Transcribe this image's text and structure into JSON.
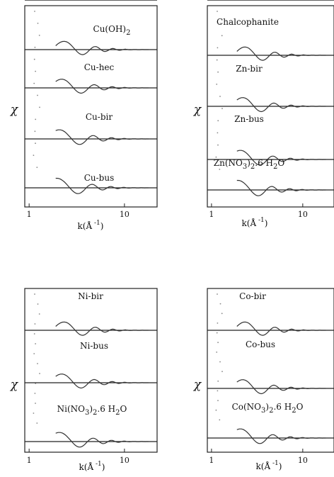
{
  "chart_data": [
    {
      "type": "line",
      "id": "top-left",
      "xlabel_base": "k(Å",
      "xlabel_exp": "-1",
      "xlabel_close": ")",
      "ylabel": "χ",
      "x_scale": "log",
      "xlim": [
        0.9,
        22
      ],
      "xticks": [
        "1",
        "10"
      ],
      "traces": [
        {
          "label_parts": [
            {
              "t": "Cu(OH)"
            },
            {
              "t": "2",
              "sub": true
            }
          ]
        },
        {
          "label_parts": [
            {
              "t": "Cu-hec"
            }
          ]
        },
        {
          "label_parts": [
            {
              "t": "Cu-bir"
            }
          ]
        },
        {
          "label_parts": [
            {
              "t": "Cu-bus"
            }
          ]
        },
        {
          "label_parts": []
        }
      ]
    },
    {
      "type": "line",
      "id": "top-right",
      "xlabel_base": "k(Å",
      "xlabel_exp": "-1",
      "xlabel_close": ")",
      "ylabel": "χ",
      "x_scale": "log",
      "xlim": [
        0.9,
        22
      ],
      "xticks": [
        "1",
        "10"
      ],
      "traces": [
        {
          "label_parts": [
            {
              "t": "Chalcophanite"
            }
          ]
        },
        {
          "label_parts": [
            {
              "t": "Zn-bir"
            }
          ]
        },
        {
          "label_parts": [
            {
              "t": "Zn-bus"
            }
          ]
        },
        {
          "label_parts": [
            {
              "t": "Zn(NO"
            },
            {
              "t": "3",
              "sub": true
            },
            {
              "t": ")"
            },
            {
              "t": "2",
              "sub": true
            },
            {
              "t": ".6 H"
            },
            {
              "t": "2",
              "sub": true
            },
            {
              "t": "O"
            }
          ]
        },
        {
          "label_parts": []
        }
      ]
    },
    {
      "type": "line",
      "id": "bottom-left",
      "xlabel_base": "k(Å",
      "xlabel_exp": "-1",
      "xlabel_close": ")",
      "ylabel": "χ",
      "x_scale": "log",
      "xlim": [
        0.9,
        22
      ],
      "xticks": [
        "1",
        "10"
      ],
      "traces": [
        {
          "label_parts": [
            {
              "t": "Ni-bir"
            }
          ]
        },
        {
          "label_parts": [
            {
              "t": "Ni-bus"
            }
          ]
        },
        {
          "label_parts": [
            {
              "t": "Ni(NO"
            },
            {
              "t": "3",
              "sub": true
            },
            {
              "t": ")"
            },
            {
              "t": "2",
              "sub": true
            },
            {
              "t": ".6 H"
            },
            {
              "t": "2",
              "sub": true
            },
            {
              "t": "O"
            }
          ]
        },
        {
          "label_parts": []
        }
      ]
    },
    {
      "type": "line",
      "id": "bottom-right",
      "xlabel_base": "k(Å",
      "xlabel_exp": "-1",
      "xlabel_close": ")",
      "ylabel": "χ",
      "x_scale": "log",
      "xlim": [
        0.9,
        22
      ],
      "xticks": [
        "1",
        "10"
      ],
      "traces": [
        {
          "label_parts": [
            {
              "t": "Co-bir"
            }
          ]
        },
        {
          "label_parts": [
            {
              "t": "Co-bus"
            }
          ]
        },
        {
          "label_parts": [
            {
              "t": "Co(NO"
            },
            {
              "t": "3",
              "sub": true
            },
            {
              "t": ")"
            },
            {
              "t": "2",
              "sub": true
            },
            {
              "t": ".6 H"
            },
            {
              "t": "2",
              "sub": true
            },
            {
              "t": "O"
            }
          ]
        },
        {
          "label_parts": []
        }
      ]
    }
  ]
}
